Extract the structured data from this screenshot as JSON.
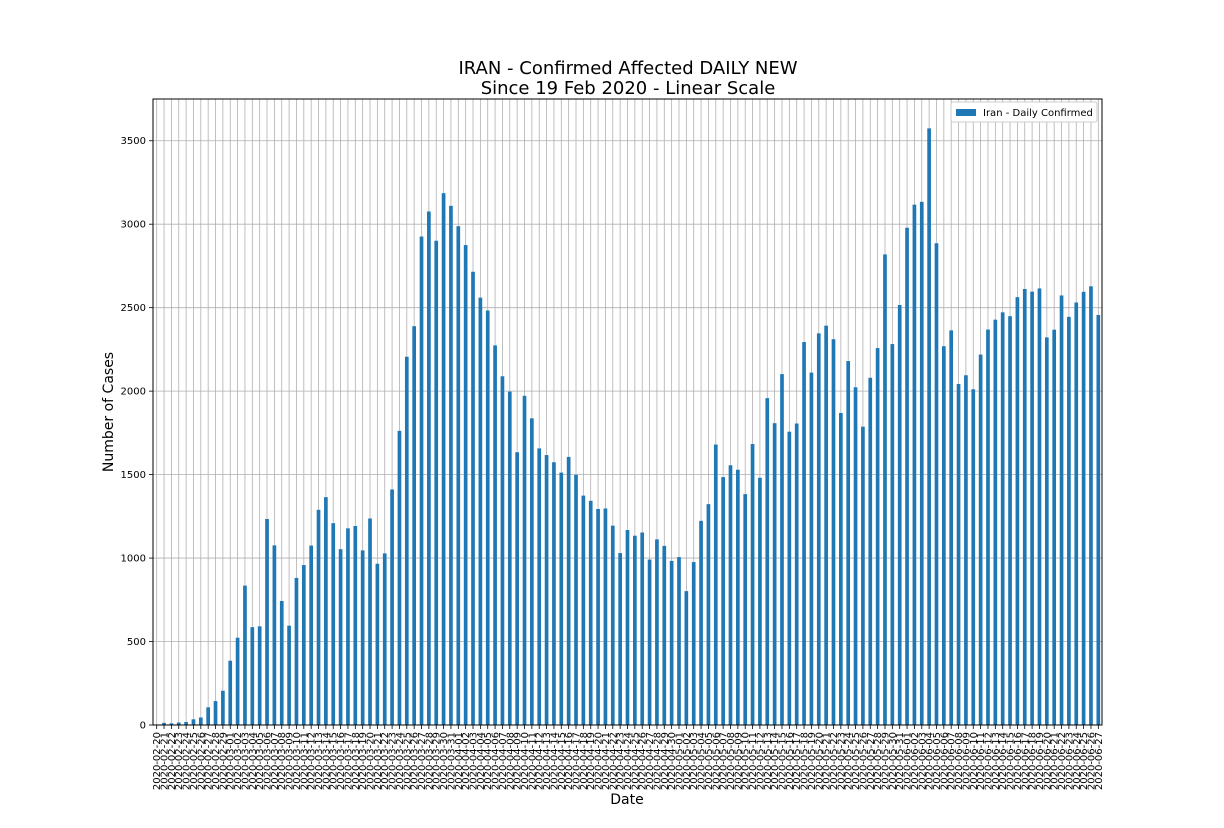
{
  "chart_data": {
    "type": "bar",
    "title": "IRAN - Confirmed Affected DAILY NEW",
    "subtitle": "Since 19 Feb 2020 - Linear Scale",
    "xlabel": "Date",
    "ylabel": "Number of Cases",
    "ylim": [
      0,
      3750
    ],
    "yticks": [
      0,
      500,
      1000,
      1500,
      2000,
      2500,
      3000,
      3500
    ],
    "grid": true,
    "legend_position": "top-right",
    "bar_color": "#1f77b4",
    "categories": [
      "2020-02-20",
      "2020-02-21",
      "2020-02-22",
      "2020-02-23",
      "2020-02-24",
      "2020-02-25",
      "2020-02-26",
      "2020-02-27",
      "2020-02-28",
      "2020-02-29",
      "2020-03-01",
      "2020-03-02",
      "2020-03-03",
      "2020-03-04",
      "2020-03-05",
      "2020-03-06",
      "2020-03-07",
      "2020-03-08",
      "2020-03-09",
      "2020-03-10",
      "2020-03-11",
      "2020-03-12",
      "2020-03-13",
      "2020-03-14",
      "2020-03-15",
      "2020-03-16",
      "2020-03-17",
      "2020-03-18",
      "2020-03-19",
      "2020-03-20",
      "2020-03-21",
      "2020-03-22",
      "2020-03-23",
      "2020-03-24",
      "2020-03-25",
      "2020-03-26",
      "2020-03-27",
      "2020-03-28",
      "2020-03-29",
      "2020-03-30",
      "2020-03-31",
      "2020-04-01",
      "2020-04-02",
      "2020-04-03",
      "2020-04-04",
      "2020-04-05",
      "2020-04-06",
      "2020-04-07",
      "2020-04-08",
      "2020-04-09",
      "2020-04-10",
      "2020-04-11",
      "2020-04-12",
      "2020-04-13",
      "2020-04-14",
      "2020-04-15",
      "2020-04-16",
      "2020-04-17",
      "2020-04-18",
      "2020-04-19",
      "2020-04-20",
      "2020-04-21",
      "2020-04-22",
      "2020-04-23",
      "2020-04-24",
      "2020-04-25",
      "2020-04-26",
      "2020-04-27",
      "2020-04-28",
      "2020-04-29",
      "2020-04-30",
      "2020-05-01",
      "2020-05-02",
      "2020-05-03",
      "2020-05-04",
      "2020-05-05",
      "2020-05-06",
      "2020-05-07",
      "2020-05-08",
      "2020-05-09",
      "2020-05-10",
      "2020-05-11",
      "2020-05-12",
      "2020-05-13",
      "2020-05-14",
      "2020-05-15",
      "2020-05-16",
      "2020-05-17",
      "2020-05-18",
      "2020-05-19",
      "2020-05-20",
      "2020-05-21",
      "2020-05-22",
      "2020-05-23",
      "2020-05-24",
      "2020-05-25",
      "2020-05-26",
      "2020-05-27",
      "2020-05-28",
      "2020-05-29",
      "2020-05-30",
      "2020-05-31",
      "2020-06-01",
      "2020-06-02",
      "2020-06-03",
      "2020-06-04",
      "2020-06-05",
      "2020-06-06",
      "2020-06-07",
      "2020-06-08",
      "2020-06-09",
      "2020-06-10",
      "2020-06-11",
      "2020-06-12",
      "2020-06-13",
      "2020-06-14",
      "2020-06-15",
      "2020-06-16",
      "2020-06-17",
      "2020-06-18",
      "2020-06-19",
      "2020-06-20",
      "2020-06-21",
      "2020-06-22",
      "2020-06-23",
      "2020-06-24",
      "2020-06-25",
      "2020-06-26",
      "2020-06-27"
    ],
    "series": [
      {
        "name": "Iran - Daily Confirmed",
        "values": [
          3,
          13,
          10,
          15,
          18,
          34,
          45,
          106,
          143,
          205,
          385,
          523,
          835,
          586,
          591,
          1234,
          1076,
          743,
          595,
          881,
          958,
          1075,
          1289,
          1365,
          1209,
          1053,
          1178,
          1192,
          1046,
          1237,
          966,
          1028,
          1411,
          1762,
          2206,
          2389,
          2926,
          3076,
          2901,
          3186,
          3110,
          2988,
          2875,
          2715,
          2560,
          2483,
          2274,
          2089,
          1997,
          1634,
          1972,
          1837,
          1657,
          1617,
          1574,
          1512,
          1606,
          1499,
          1374,
          1343,
          1294,
          1297,
          1194,
          1030,
          1168,
          1134,
          1153,
          991,
          1112,
          1073,
          983,
          1006,
          802,
          976,
          1223,
          1323,
          1680,
          1485,
          1556,
          1529,
          1383,
          1683,
          1481,
          1958,
          1808,
          2102,
          1757,
          1806,
          2294,
          2111,
          2346,
          2392,
          2311,
          1869,
          2180,
          2023,
          1787,
          2080,
          2258,
          2819,
          2282,
          2516,
          2979,
          3117,
          3134,
          3574,
          2886,
          2269,
          2364,
          2043,
          2095,
          2011,
          2219,
          2369,
          2428,
          2472,
          2449,
          2563,
          2612,
          2596,
          2615,
          2322,
          2368,
          2573,
          2445,
          2531,
          2595,
          2628,
          2456
        ]
      }
    ]
  }
}
